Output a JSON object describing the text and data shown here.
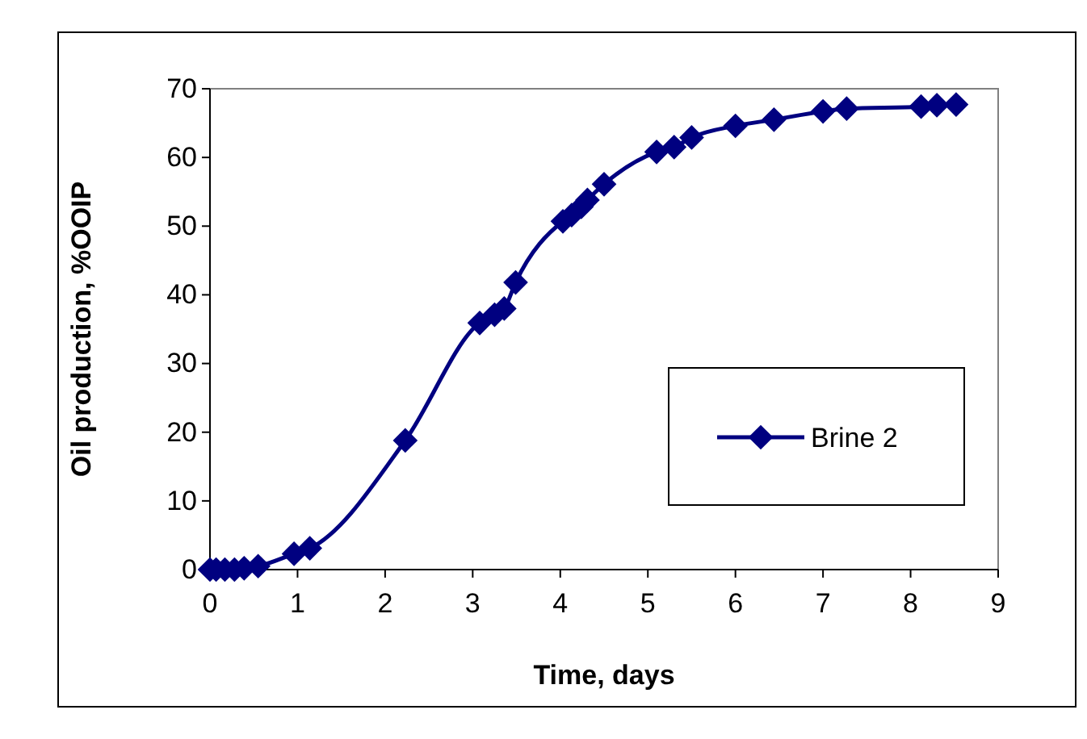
{
  "chart_data": {
    "type": "line",
    "xlabel": "Time, days",
    "ylabel": "Oil production, %OOIP",
    "x": [
      0,
      0.07,
      0.17,
      0.28,
      0.39,
      0.55,
      0.96,
      1.14,
      2.23,
      3.08,
      3.25,
      3.36,
      3.49,
      4.03,
      4.13,
      4.24,
      4.31,
      4.5,
      5.1,
      5.3,
      5.5,
      6.0,
      6.44,
      7.0,
      7.27,
      8.12,
      8.3,
      8.52
    ],
    "series": [
      {
        "name": "Brine 2",
        "color": "#000080",
        "values": [
          0,
          0,
          0,
          0,
          0.2,
          0.5,
          2.3,
          3.1,
          18.8,
          35.9,
          37.1,
          38,
          41.8,
          50.7,
          51.6,
          52.8,
          53.8,
          56.1,
          60.8,
          61.5,
          62.9,
          64.6,
          65.5,
          66.7,
          67.1,
          67.4,
          67.6,
          67.7
        ]
      }
    ],
    "xlim": [
      0,
      9
    ],
    "xticks": [
      0,
      1,
      2,
      3,
      4,
      5,
      6,
      7,
      8,
      9
    ],
    "ylim": [
      0,
      70
    ],
    "yticks": [
      0,
      10,
      20,
      30,
      40,
      50,
      60,
      70
    ],
    "grid": false,
    "legend": "right",
    "marker": "diamond",
    "line_style": "solid"
  }
}
